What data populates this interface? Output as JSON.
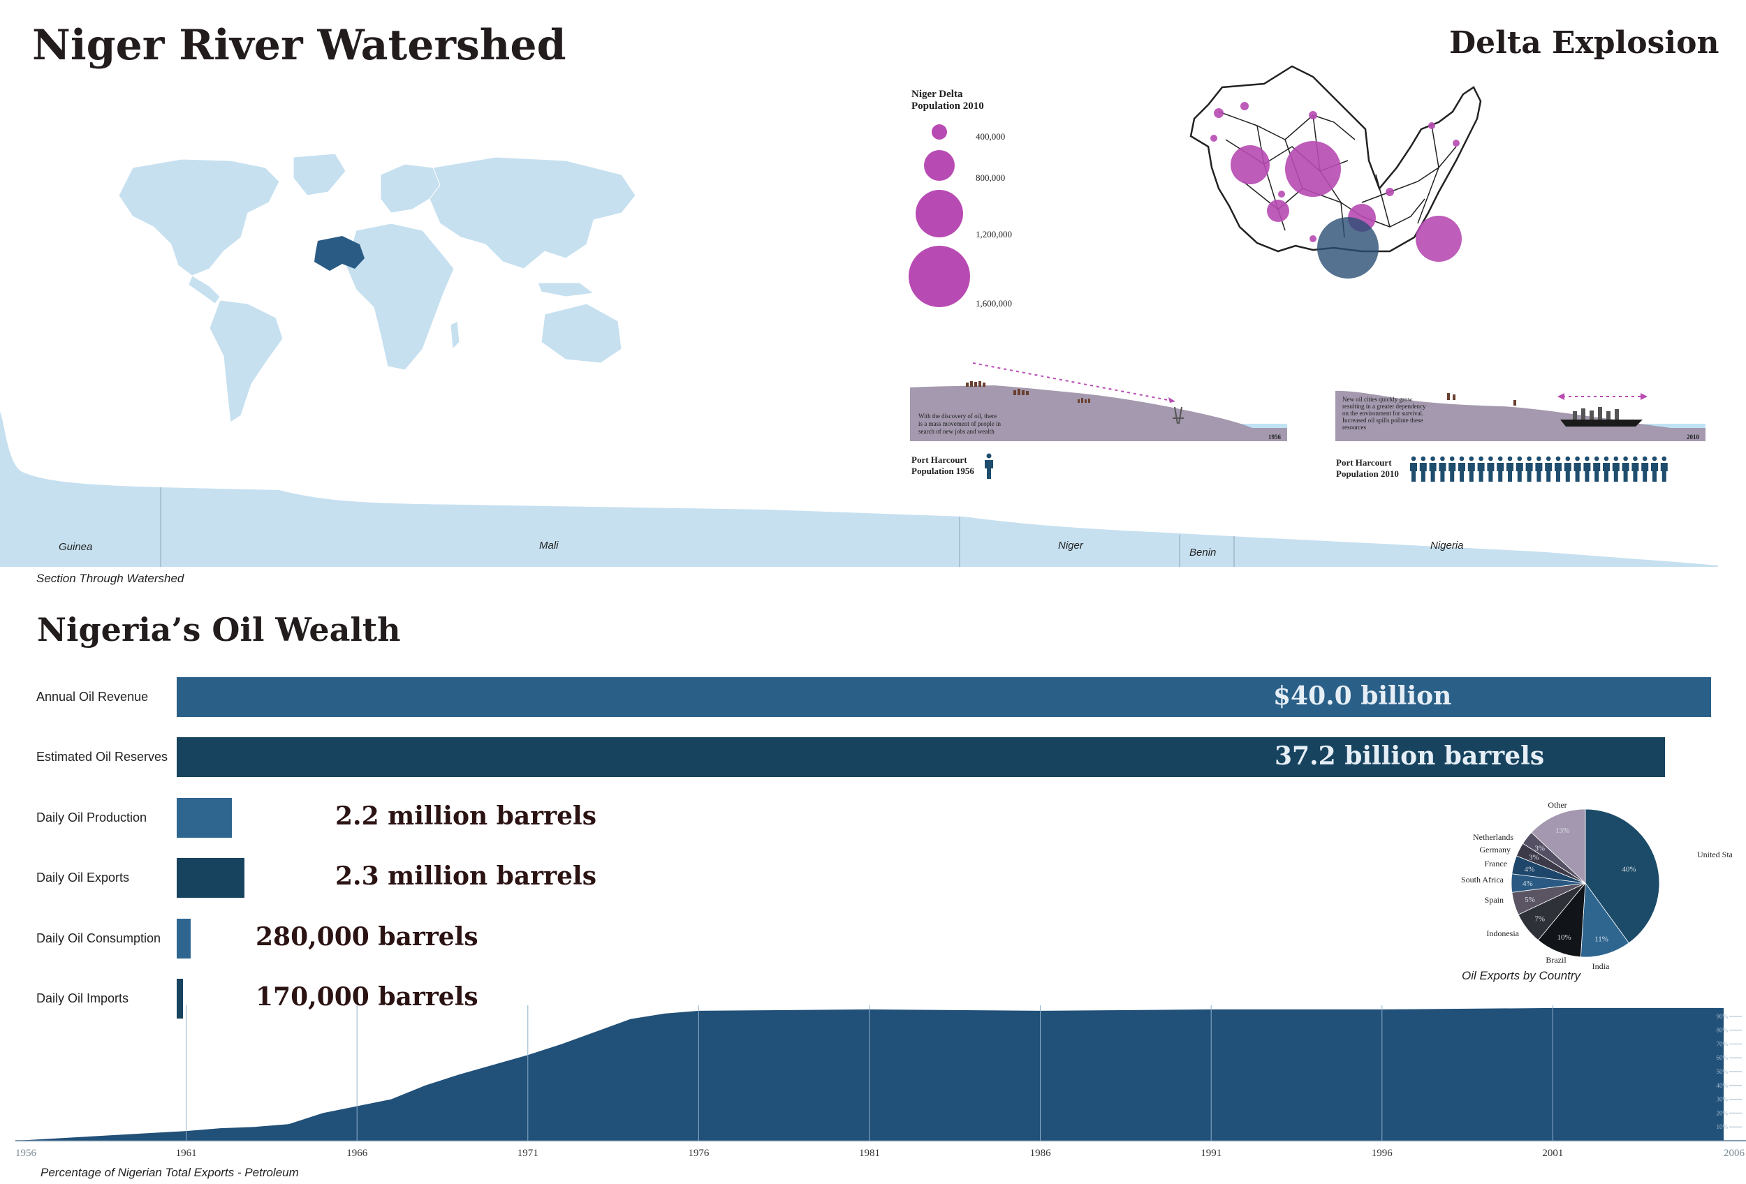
{
  "titles": {
    "main": "Niger River Watershed",
    "delta": "Delta Explosion",
    "oil": "Nigeria’s Oil Wealth"
  },
  "section": {
    "caption": "Section Through Watershed",
    "countries": [
      "Guinea",
      "Mali",
      "Niger",
      "Benin",
      "Nigeria"
    ]
  },
  "legend": {
    "title_line1": "Niger Delta",
    "title_line2": "Population 2010",
    "values": [
      "400,000",
      "800,000",
      "1,200,000",
      "1,600,000"
    ]
  },
  "diagram_1956": {
    "text": [
      "With the discovery of oil, there",
      "is a mass movement of people in",
      "search of new jobs and wealth"
    ],
    "year": "1956",
    "pop_line1": "Port Harcourt",
    "pop_line2": "Population 1956"
  },
  "diagram_2010": {
    "text": [
      "New oil cities quickly grow",
      "resulting in a greater dependency",
      "on the environment for survival.",
      "Increased oil spills pollute these",
      "resources"
    ],
    "year": "2010",
    "pop_line1": "Port Harcourt",
    "pop_line2": "Population 2010"
  },
  "colors": {
    "magenta": "#b84bb3",
    "navy": "#214f72",
    "dark_navy": "#17435f",
    "light_blue": "#c6e0f0",
    "terrain": "#a499ae"
  },
  "icons": [
    "person-icon",
    "oil-rig-icon",
    "ship-icon",
    "city-icon"
  ],
  "chart_data": [
    {
      "type": "bar",
      "title": "Nigeria’s Oil Wealth",
      "categories": [
        "Annual Oil Revenue",
        "Estimated Oil Reserves",
        "Daily Oil Production",
        "Daily Oil Exports",
        "Daily Oil Consumption",
        "Daily Oil Imports"
      ],
      "value_labels": [
        "$40.0 billion",
        "37.2 billion barrels",
        "2.2 million barrels",
        "2.3 million barrels",
        "280,000 barrels",
        "170,000 barrels"
      ],
      "relative_lengths": [
        1.0,
        0.97,
        0.036,
        0.044,
        0.009,
        0.004
      ]
    },
    {
      "type": "pie",
      "title": "Oil Exports by Country",
      "labels": [
        "United States",
        "India",
        "Brazil",
        "Indonesia",
        "Spain",
        "South Africa",
        "France",
        "Germany",
        "Netherlands",
        "Other"
      ],
      "values": [
        40,
        11,
        10,
        7,
        5,
        4,
        4,
        3,
        3,
        13
      ],
      "value_labels": [
        "40%",
        "11%",
        "10%",
        "7%",
        "5%",
        "4%",
        "4%",
        "3%",
        "3%",
        "13%"
      ],
      "colors": [
        "#1b4b68",
        "#2e6690",
        "#111418",
        "#2f3138",
        "#5b5563",
        "#2a5a83",
        "#1e466a",
        "#3c3a48",
        "#565064",
        "#a498b0"
      ]
    },
    {
      "type": "area",
      "title": "Percentage of Nigerian Total Exports - Petroleum",
      "x": [
        1956,
        1961,
        1962,
        1963,
        1964,
        1965,
        1966,
        1967,
        1968,
        1969,
        1970,
        1971,
        1972,
        1973,
        1974,
        1975,
        1976,
        1981,
        1986,
        1991,
        1996,
        2001,
        2006
      ],
      "y": [
        0,
        7,
        9,
        10,
        12,
        20,
        25,
        30,
        40,
        48,
        55,
        62,
        70,
        79,
        88,
        92,
        94,
        95,
        94,
        95,
        95,
        96,
        96
      ],
      "xticks": [
        "1956",
        "1961",
        "1966",
        "1971",
        "1976",
        "1981",
        "1986",
        "1991",
        "1996",
        "2001",
        "2006"
      ],
      "yticks": [
        "10%",
        "20%",
        "30%",
        "40%",
        "50%",
        "60%",
        "70%",
        "80%",
        "90%"
      ],
      "ylim": [
        0,
        100
      ],
      "xlim": [
        1956,
        2006
      ]
    }
  ]
}
